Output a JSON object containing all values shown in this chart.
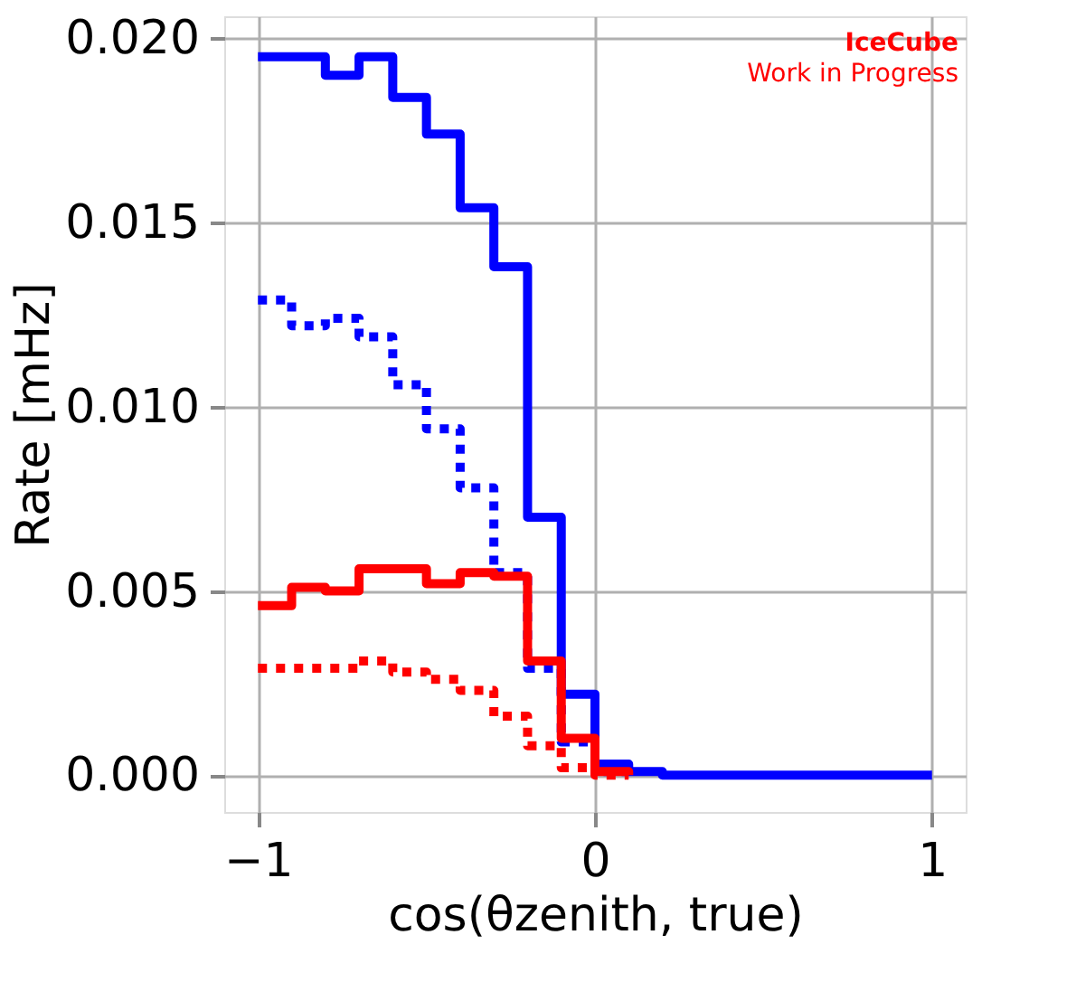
{
  "chart_data": {
    "type": "step",
    "x": [
      -1.0,
      -0.9,
      -0.8,
      -0.7,
      -0.6,
      -0.5,
      -0.4,
      -0.3,
      -0.2,
      -0.1,
      0.0,
      0.1,
      0.2,
      0.3,
      0.4,
      0.5,
      0.6,
      0.7,
      0.8,
      0.9,
      1.0
    ],
    "series": [
      {
        "color": "#0000ff",
        "line_style": "solid",
        "values": [
          0.0195,
          0.0195,
          0.019,
          0.0195,
          0.0184,
          0.0174,
          0.0154,
          0.0138,
          0.007,
          0.0022,
          0.0003,
          0.0001,
          0,
          0,
          0,
          0,
          0,
          0,
          0,
          0,
          0
        ]
      },
      {
        "color": "#0000ff",
        "line_style": "dotted",
        "values": [
          0.0129,
          0.0122,
          0.0124,
          0.0119,
          0.0106,
          0.0094,
          0.0078,
          0.0055,
          0.0029,
          0.0009,
          0.0001,
          0,
          null,
          null,
          null,
          null,
          null,
          null,
          null,
          null,
          null
        ]
      },
      {
        "color": "#ff0000",
        "line_style": "solid",
        "values": [
          0.0046,
          0.0051,
          0.005,
          0.0056,
          0.0056,
          0.0052,
          0.0055,
          0.0054,
          0.0031,
          0.001,
          0.0001,
          0,
          null,
          null,
          null,
          null,
          null,
          null,
          null,
          null,
          null
        ]
      },
      {
        "color": "#ff0000",
        "line_style": "dotted",
        "values": [
          0.0029,
          0.0029,
          0.0029,
          0.0031,
          0.0028,
          0.0026,
          0.0023,
          0.0016,
          0.0008,
          0.0002,
          0,
          0,
          null,
          null,
          null,
          null,
          null,
          null,
          null,
          null,
          null
        ]
      }
    ],
    "xlabel": "cos(θzenith, true)",
    "ylabel": "Rate [mHz]",
    "xlim": [
      -1.1,
      1.1
    ],
    "xticks": [
      {
        "value": -1,
        "label": "−1"
      },
      0,
      1
    ],
    "ylim": [
      -0.001,
      0.0206
    ],
    "yticks": [
      {
        "value": 0,
        "label": "0.000"
      },
      {
        "value": 0.005,
        "label": "0.005"
      },
      {
        "value": 0.01,
        "label": "0.010"
      },
      {
        "value": 0.015,
        "label": "0.015"
      },
      {
        "value": 0.02,
        "label": "0.020"
      }
    ],
    "grid": true,
    "annotations": [
      "IceCube",
      "Work in Progress"
    ]
  }
}
